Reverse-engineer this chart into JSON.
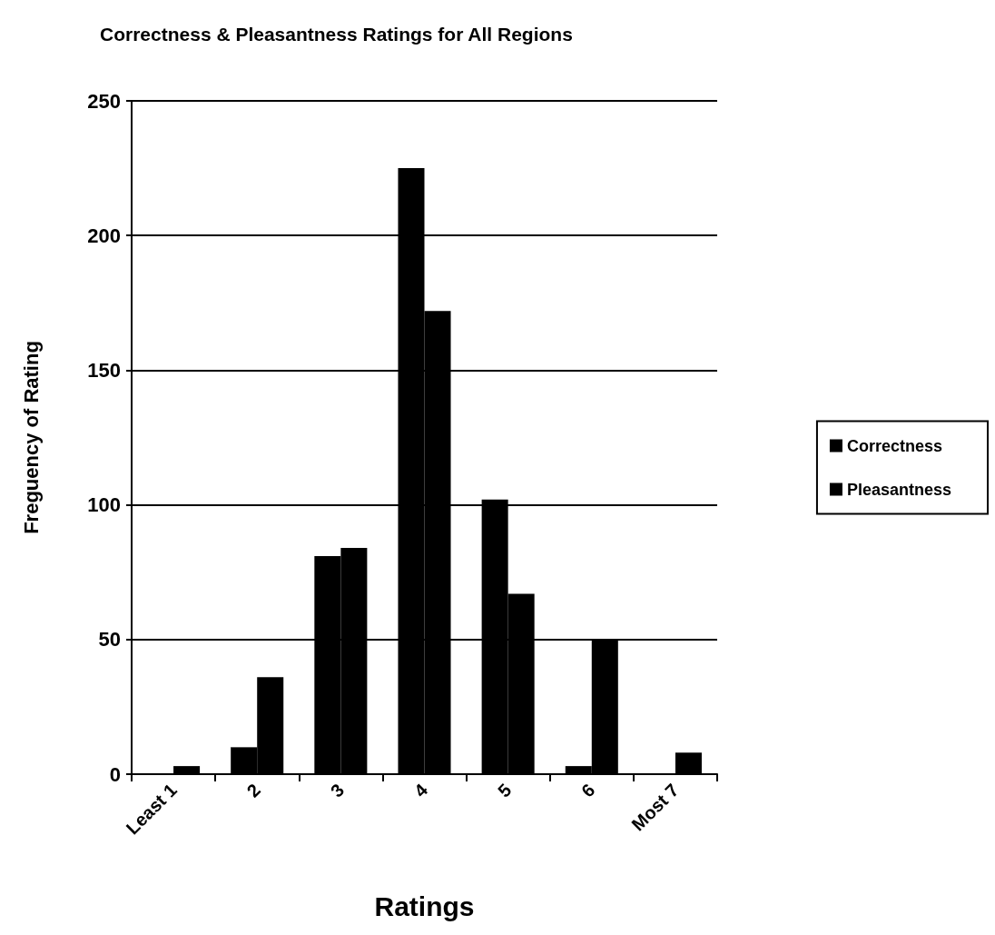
{
  "chart_data": {
    "type": "bar",
    "title": "Correctness & Pleasantness Ratings for All Regions",
    "xlabel": "Ratings",
    "ylabel": "Freguency of Rating",
    "categories": [
      "Least 1",
      "2",
      "3",
      "4",
      "5",
      "6",
      "Most 7"
    ],
    "series": [
      {
        "name": "Correctness",
        "color": "#000000",
        "values": [
          0,
          10,
          81,
          225,
          102,
          3,
          0
        ]
      },
      {
        "name": "Pleasantness",
        "color": "#000000",
        "values": [
          3,
          36,
          84,
          172,
          67,
          50,
          8
        ]
      }
    ],
    "ylim": [
      0,
      250
    ],
    "yticks": [
      0,
      50,
      100,
      150,
      200,
      250
    ],
    "grid": "y",
    "legend": "right"
  }
}
